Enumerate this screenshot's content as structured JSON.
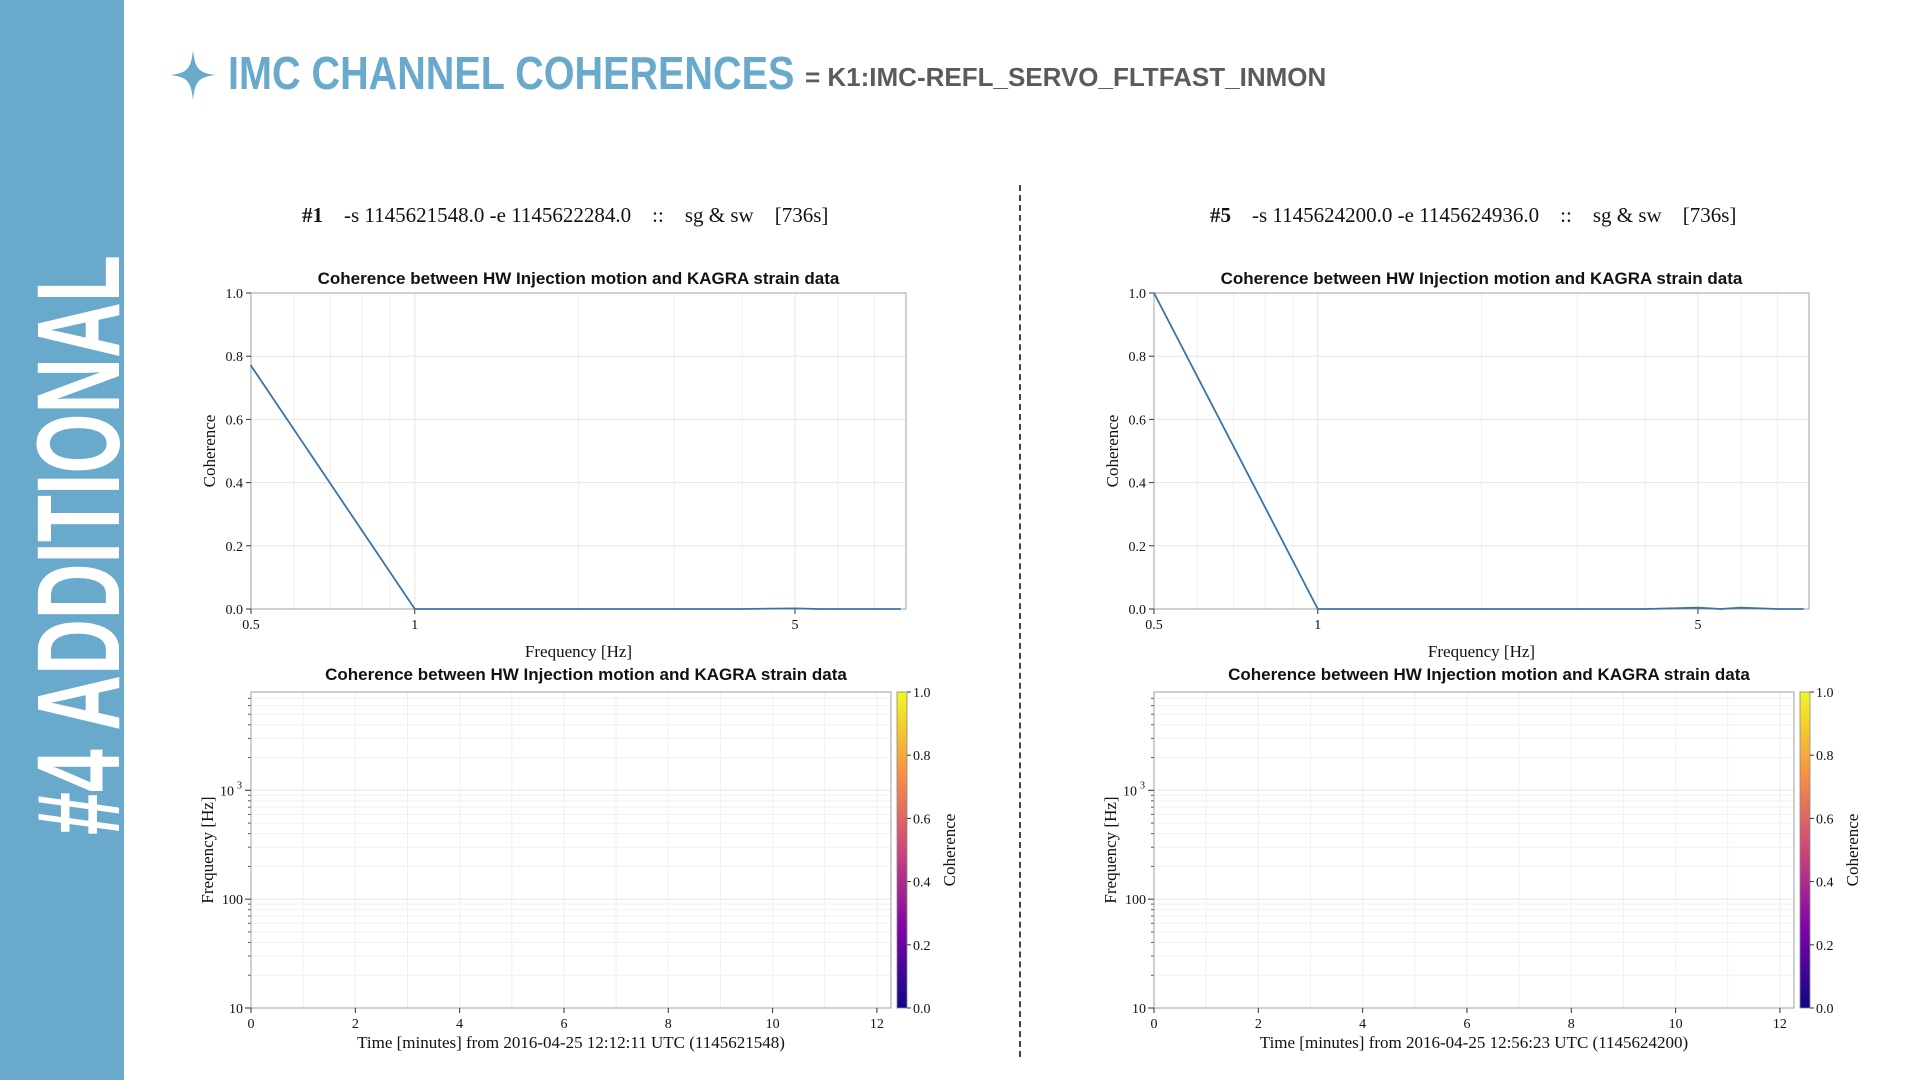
{
  "sidebar": {
    "label": "#4 ADDITIONAL"
  },
  "header": {
    "title": "IMC CHANNEL COHERENCES",
    "subtitle": "= K1:IMC-REFL_SERVO_FLTFAST_INMON"
  },
  "colors": {
    "accent": "#68a9cc",
    "line": "#3a73a8",
    "subtitle": "#5b5b5b"
  },
  "runs": [
    {
      "id": "#1",
      "args": "-s 1145621548.0 -e 1145622284.0",
      "sep": "::",
      "tag": "sg & sw",
      "dur": "[736s]"
    },
    {
      "id": "#5",
      "args": "-s 1145624200.0 -e 1145624936.0",
      "sep": "::",
      "tag": "sg & sw",
      "dur": "[736s]"
    }
  ],
  "chart_data": [
    {
      "type": "line",
      "title": "Coherence between HW Injection motion and KAGRA strain data",
      "xlabel": "Frequency [Hz]",
      "ylabel": "Coherence",
      "xscale": "log",
      "xlim": [
        0.5,
        8.0
      ],
      "ylim": [
        0.0,
        1.0
      ],
      "xticks": [
        "0.5",
        "1",
        "5"
      ],
      "yticks": [
        "0.0",
        "0.2",
        "0.4",
        "0.6",
        "0.8",
        "1.0"
      ],
      "grid": true,
      "x": [
        0.5,
        1.0,
        2.0,
        3.0,
        4.0,
        5.0,
        5.5,
        6.0,
        7.0,
        7.8
      ],
      "y": [
        0.77,
        0.0,
        0.0,
        0.0,
        0.0,
        0.002,
        0.0,
        0.0,
        0.0,
        0.0
      ]
    },
    {
      "type": "heatmap",
      "title": "Coherence between HW Injection motion and KAGRA strain data",
      "xlabel": "Time [minutes] from 2016-04-25 12:12:11 UTC (1145621548)",
      "ylabel": "Frequency [Hz]",
      "xlim": [
        0,
        12.27
      ],
      "yscale": "log",
      "ylim": [
        10,
        8000
      ],
      "xticks": [
        "0",
        "2",
        "4",
        "6",
        "8",
        "10",
        "12"
      ],
      "yticks": [
        {
          "v": 10,
          "label": "10"
        },
        {
          "v": 100,
          "label": "100"
        },
        {
          "v": 1000,
          "label": "10",
          "sup": "3"
        }
      ],
      "colorbar": {
        "label": "Coherence",
        "range": [
          0.0,
          1.0
        ],
        "ticks": [
          "0.0",
          "0.2",
          "0.4",
          "0.6",
          "0.8",
          "1.0"
        ],
        "colormap": "plasma"
      },
      "grid": true
    },
    {
      "type": "line",
      "title": "Coherence between HW Injection motion and KAGRA strain data",
      "xlabel": "Frequency [Hz]",
      "ylabel": "Coherence",
      "xscale": "log",
      "xlim": [
        0.5,
        8.0
      ],
      "ylim": [
        0.0,
        1.0
      ],
      "xticks": [
        "0.5",
        "1",
        "5"
      ],
      "yticks": [
        "0.0",
        "0.2",
        "0.4",
        "0.6",
        "0.8",
        "1.0"
      ],
      "grid": true,
      "x": [
        0.5,
        1.0,
        2.0,
        3.0,
        4.0,
        5.0,
        5.5,
        6.0,
        7.0,
        7.8
      ],
      "y": [
        1.0,
        0.0,
        0.0,
        0.0,
        0.0,
        0.004,
        0.0,
        0.004,
        0.0,
        0.0
      ]
    },
    {
      "type": "heatmap",
      "title": "Coherence between HW Injection motion and KAGRA strain data",
      "xlabel": "Time [minutes] from 2016-04-25 12:56:23 UTC (1145624200)",
      "ylabel": "Frequency [Hz]",
      "xlim": [
        0,
        12.27
      ],
      "yscale": "log",
      "ylim": [
        10,
        8000
      ],
      "xticks": [
        "0",
        "2",
        "4",
        "6",
        "8",
        "10",
        "12"
      ],
      "yticks": [
        {
          "v": 10,
          "label": "10"
        },
        {
          "v": 100,
          "label": "100"
        },
        {
          "v": 1000,
          "label": "10",
          "sup": "3"
        }
      ],
      "colorbar": {
        "label": "Coherence",
        "range": [
          0.0,
          1.0
        ],
        "ticks": [
          "0.0",
          "0.2",
          "0.4",
          "0.6",
          "0.8",
          "1.0"
        ],
        "colormap": "plasma"
      },
      "grid": true
    }
  ]
}
